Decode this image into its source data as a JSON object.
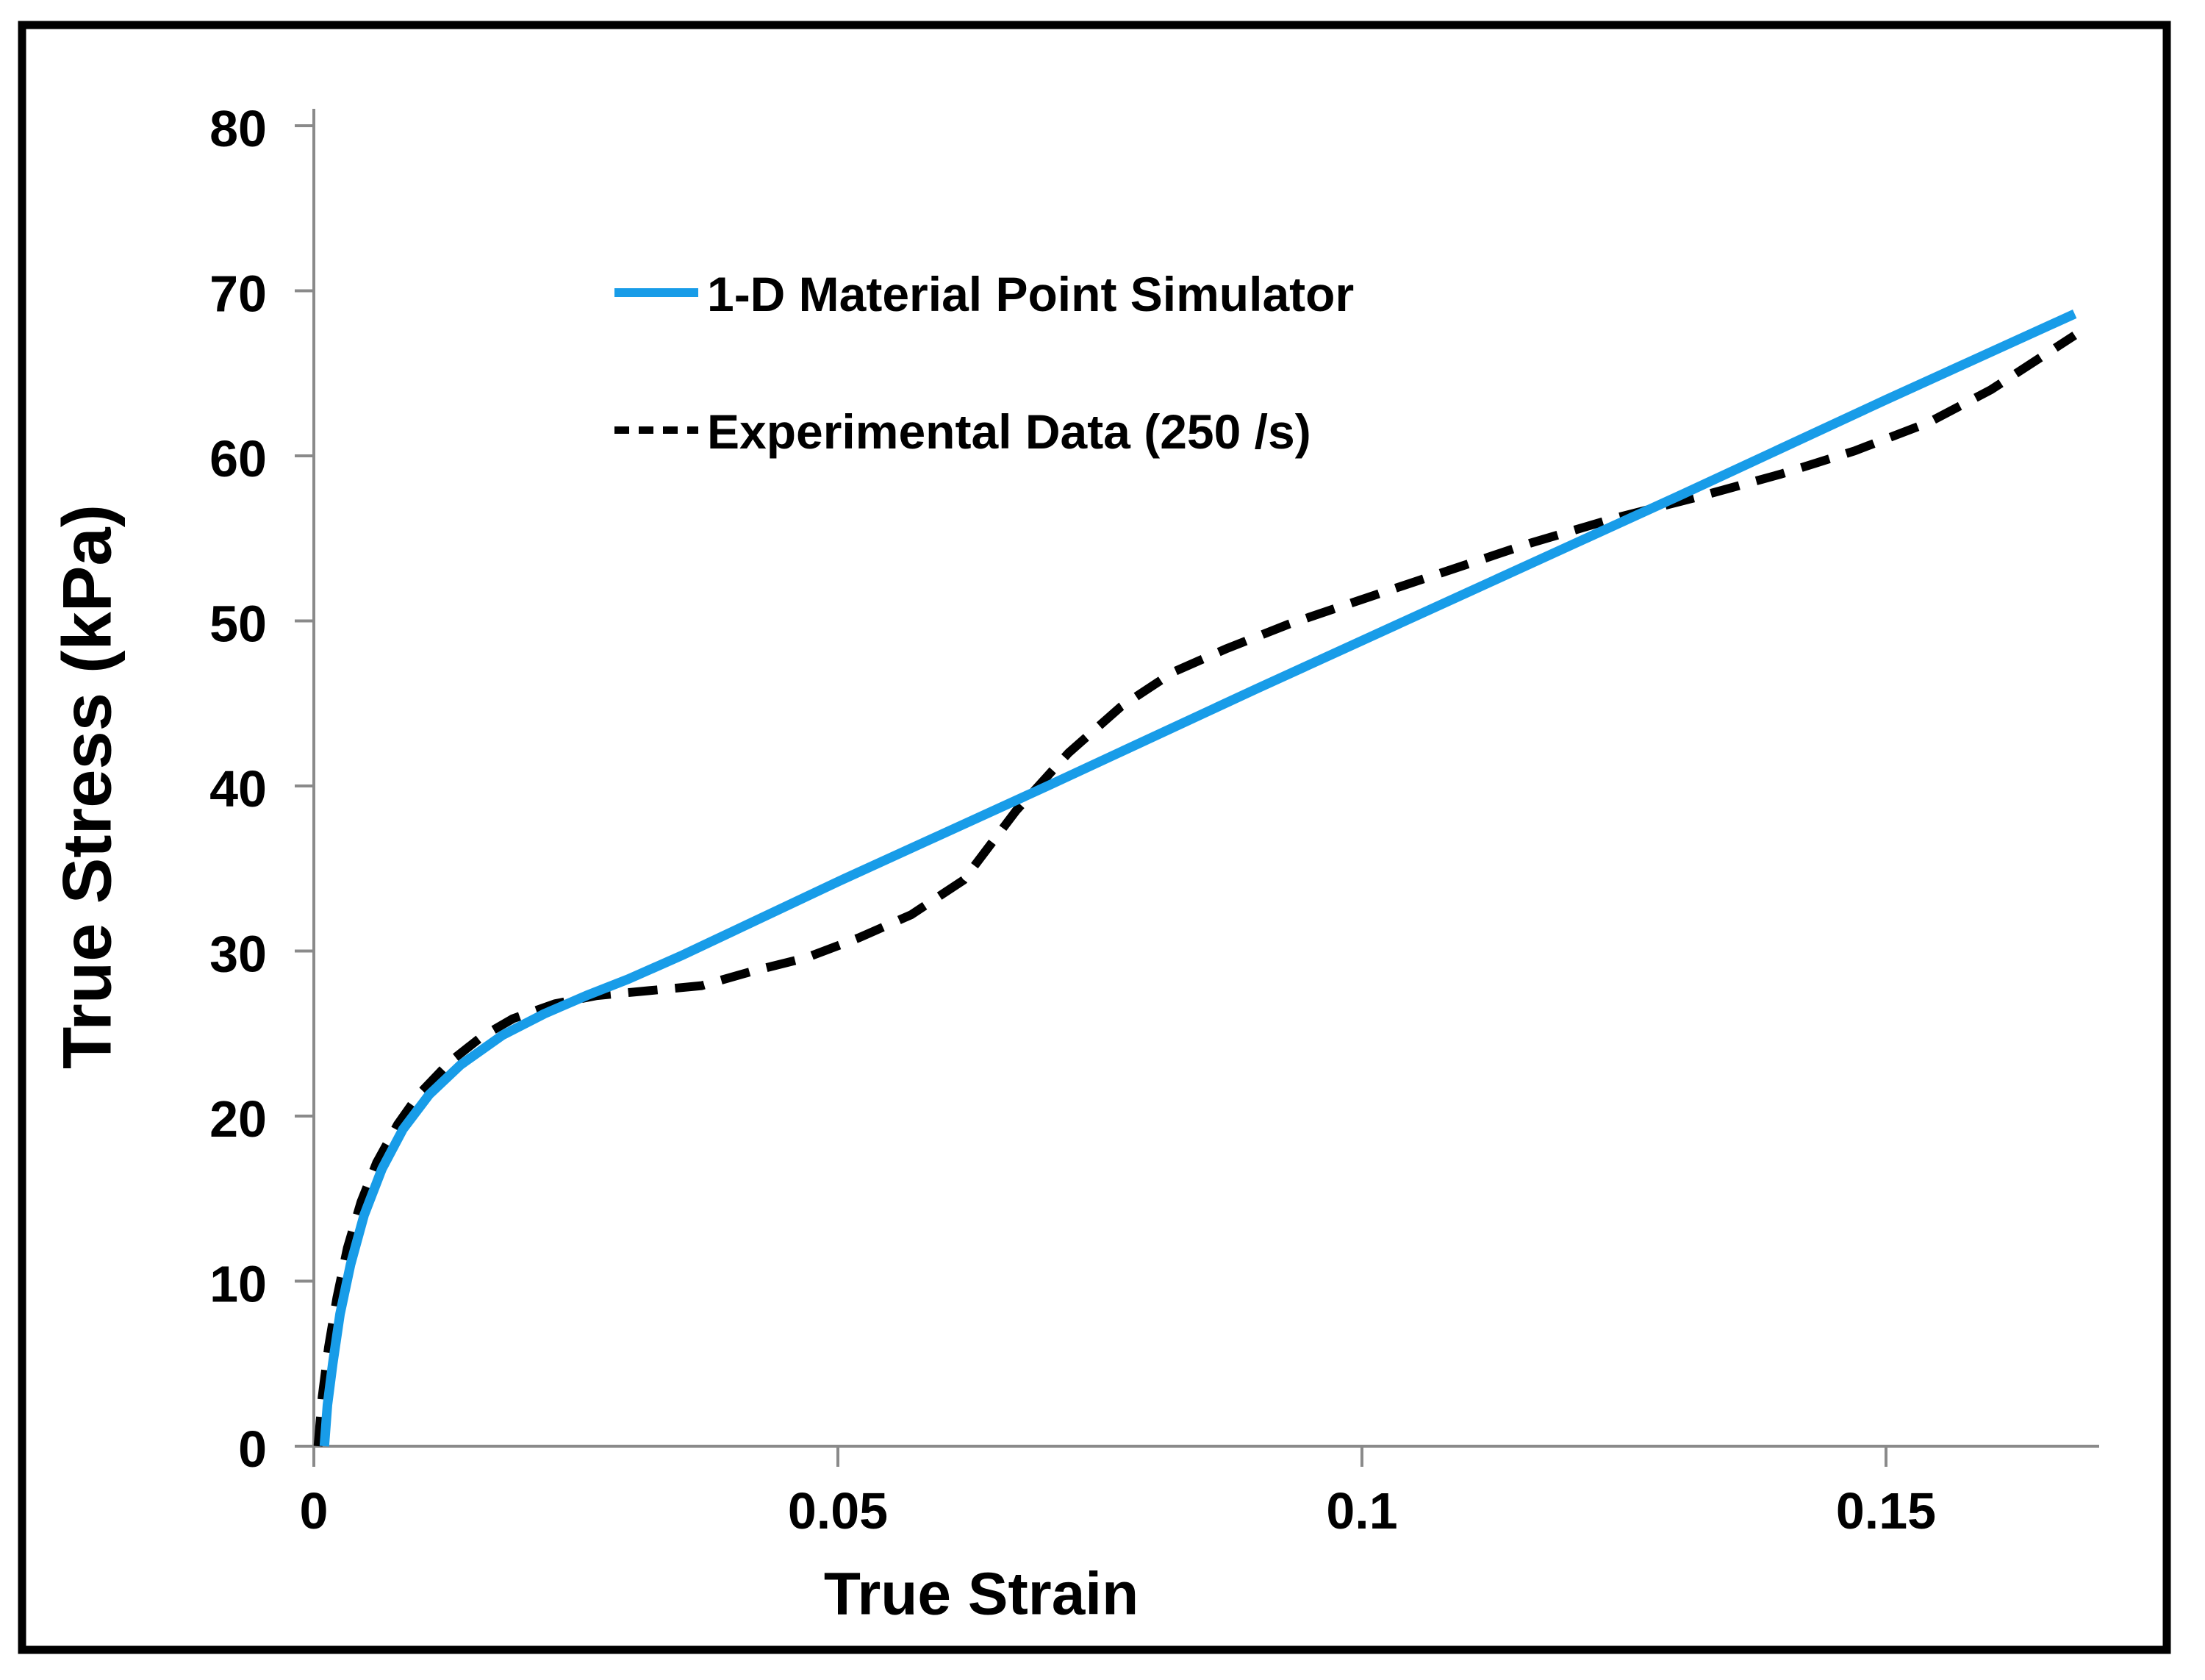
{
  "figure": {
    "background": "#ffffff",
    "border_color": "#000000",
    "axis_color": "#8a8a8a",
    "text_color": "#000000"
  },
  "chart_data": {
    "type": "line",
    "title": "",
    "xlabel": "True Strain",
    "ylabel": "True Stress (kPa)",
    "xlim": [
      0,
      0.1703
    ],
    "ylim": [
      0,
      80
    ],
    "grid": false,
    "legend_position": "upper-left-inside",
    "x_ticks": [
      {
        "value": 0,
        "label": "0"
      },
      {
        "value": 0.05,
        "label": "0.05"
      },
      {
        "value": 0.1,
        "label": "0.1"
      },
      {
        "value": 0.15,
        "label": "0.15"
      }
    ],
    "y_ticks": [
      {
        "value": 0,
        "label": "0"
      },
      {
        "value": 10,
        "label": "10"
      },
      {
        "value": 20,
        "label": "20"
      },
      {
        "value": 30,
        "label": "30"
      },
      {
        "value": 40,
        "label": "40"
      },
      {
        "value": 50,
        "label": "50"
      },
      {
        "value": 60,
        "label": "60"
      },
      {
        "value": 70,
        "label": "70"
      },
      {
        "value": 80,
        "label": "80"
      }
    ],
    "series": [
      {
        "name": "1-D Material Point Simulator",
        "color": "#189ce8",
        "style": "solid",
        "x": [
          0.001,
          0.0013,
          0.0018,
          0.0025,
          0.0035,
          0.0048,
          0.0065,
          0.0085,
          0.011,
          0.014,
          0.018,
          0.022,
          0.026,
          0.03,
          0.035,
          0.04,
          0.05,
          0.07,
          0.09,
          0.11,
          0.13,
          0.15,
          0.168
        ],
        "y": [
          0,
          2.5,
          5.0,
          8.0,
          11.0,
          14.0,
          16.8,
          19.2,
          21.3,
          23.1,
          24.9,
          26.2,
          27.3,
          28.3,
          29.7,
          31.2,
          34.2,
          40.0,
          45.9,
          51.7,
          57.5,
          63.4,
          68.6
        ]
      },
      {
        "name": "Experimental Data (250 /s)",
        "color": "#000000",
        "style": "dashed",
        "x": [
          0.0004,
          0.0008,
          0.0014,
          0.0022,
          0.0032,
          0.0045,
          0.006,
          0.008,
          0.01,
          0.013,
          0.016,
          0.019,
          0.023,
          0.027,
          0.032,
          0.037,
          0.042,
          0.047,
          0.052,
          0.057,
          0.062,
          0.067,
          0.072,
          0.077,
          0.082,
          0.087,
          0.093,
          0.1,
          0.108,
          0.116,
          0.124,
          0.132,
          0.14,
          0.147,
          0.154,
          0.16,
          0.168
        ],
        "y": [
          0,
          3.0,
          6.0,
          9.0,
          12.0,
          14.8,
          17.2,
          19.5,
          21.3,
          23.3,
          24.8,
          25.9,
          26.8,
          27.3,
          27.6,
          27.9,
          28.8,
          29.6,
          30.8,
          32.2,
          34.3,
          38.5,
          42.0,
          44.8,
          46.9,
          48.3,
          49.8,
          51.3,
          53.0,
          54.7,
          56.2,
          57.5,
          58.9,
          60.3,
          62.0,
          64.0,
          67.3
        ]
      }
    ]
  }
}
